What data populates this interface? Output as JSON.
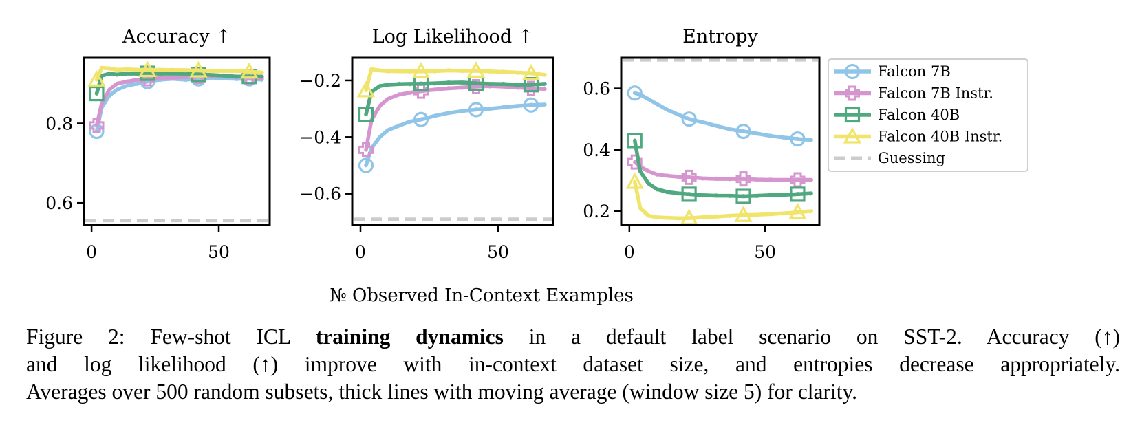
{
  "chart_data": [
    {
      "type": "line",
      "title": "Accuracy ↑",
      "xlim": [
        -3,
        70
      ],
      "ylim": [
        0.545,
        0.965
      ],
      "xticks": [
        0,
        50
      ],
      "xtick_labels": [
        "0",
        "50"
      ],
      "yticks": [
        0.6,
        0.8
      ],
      "ytick_labels": [
        "0.6",
        "0.8"
      ],
      "guessing": 0.556,
      "series": [
        {
          "name": "Falcon 7B",
          "x": [
            2,
            4,
            7,
            10,
            14,
            18,
            22,
            27,
            32,
            37,
            42,
            47,
            52,
            57,
            62,
            67
          ],
          "values": [
            0.78,
            0.84,
            0.87,
            0.885,
            0.895,
            0.9,
            0.905,
            0.91,
            0.912,
            0.91,
            0.912,
            0.915,
            0.913,
            0.912,
            0.912,
            0.91
          ]
        },
        {
          "name": "Falcon 7B Instr.",
          "x": [
            2,
            4,
            7,
            10,
            14,
            18,
            22,
            27,
            32,
            37,
            42,
            47,
            52,
            57,
            62,
            67
          ],
          "values": [
            0.795,
            0.85,
            0.885,
            0.9,
            0.905,
            0.91,
            0.912,
            0.915,
            0.915,
            0.917,
            0.918,
            0.918,
            0.918,
            0.917,
            0.915,
            0.913
          ]
        },
        {
          "name": "Falcon 40B",
          "x": [
            2,
            4,
            7,
            10,
            14,
            18,
            22,
            27,
            32,
            37,
            42,
            47,
            52,
            57,
            62,
            67
          ],
          "values": [
            0.875,
            0.92,
            0.925,
            0.923,
            0.925,
            0.925,
            0.926,
            0.925,
            0.925,
            0.925,
            0.923,
            0.922,
            0.92,
            0.918,
            0.918,
            0.918
          ]
        },
        {
          "name": "Falcon 40B Instr.",
          "x": [
            2,
            4,
            7,
            10,
            14,
            18,
            22,
            27,
            32,
            37,
            42,
            47,
            52,
            57,
            62,
            67
          ],
          "values": [
            0.91,
            0.94,
            0.938,
            0.935,
            0.936,
            0.935,
            0.934,
            0.935,
            0.934,
            0.934,
            0.933,
            0.932,
            0.932,
            0.932,
            0.93,
            0.928
          ]
        }
      ]
    },
    {
      "type": "line",
      "title": "Log Likelihood ↑",
      "xlim": [
        -3,
        70
      ],
      "ylim": [
        -0.71,
        -0.12
      ],
      "xticks": [
        0,
        50
      ],
      "xtick_labels": [
        "0",
        "50"
      ],
      "yticks": [
        -0.2,
        -0.4,
        -0.6
      ],
      "ytick_labels": [
        "−0.2",
        "−0.4",
        "−0.6"
      ],
      "guessing": -0.69,
      "series": [
        {
          "name": "Falcon 7B",
          "x": [
            2,
            4,
            7,
            10,
            14,
            18,
            22,
            27,
            32,
            37,
            42,
            47,
            52,
            57,
            62,
            67
          ],
          "values": [
            -0.5,
            -0.44,
            -0.4,
            -0.375,
            -0.36,
            -0.345,
            -0.338,
            -0.325,
            -0.315,
            -0.308,
            -0.303,
            -0.3,
            -0.295,
            -0.29,
            -0.287,
            -0.285
          ]
        },
        {
          "name": "Falcon 7B Instr.",
          "x": [
            2,
            4,
            7,
            10,
            14,
            18,
            22,
            27,
            32,
            37,
            42,
            47,
            52,
            57,
            62,
            67
          ],
          "values": [
            -0.445,
            -0.34,
            -0.29,
            -0.265,
            -0.25,
            -0.243,
            -0.238,
            -0.232,
            -0.228,
            -0.225,
            -0.222,
            -0.22,
            -0.222,
            -0.225,
            -0.228,
            -0.23
          ]
        },
        {
          "name": "Falcon 40B",
          "x": [
            2,
            4,
            7,
            10,
            14,
            18,
            22,
            27,
            32,
            37,
            42,
            47,
            52,
            57,
            62,
            67
          ],
          "values": [
            -0.32,
            -0.24,
            -0.22,
            -0.215,
            -0.213,
            -0.212,
            -0.212,
            -0.21,
            -0.208,
            -0.207,
            -0.21,
            -0.212,
            -0.213,
            -0.215,
            -0.215,
            -0.212
          ]
        },
        {
          "name": "Falcon 40B Instr.",
          "x": [
            2,
            4,
            7,
            10,
            14,
            18,
            22,
            27,
            32,
            37,
            42,
            47,
            52,
            57,
            62,
            67
          ],
          "values": [
            -0.235,
            -0.16,
            -0.165,
            -0.167,
            -0.168,
            -0.168,
            -0.168,
            -0.167,
            -0.165,
            -0.166,
            -0.166,
            -0.168,
            -0.17,
            -0.172,
            -0.175,
            -0.18
          ]
        }
      ]
    },
    {
      "type": "line",
      "title": "Entropy",
      "xlim": [
        -3,
        70
      ],
      "ylim": [
        0.155,
        0.7
      ],
      "xticks": [
        0,
        50
      ],
      "xtick_labels": [
        "0",
        "50"
      ],
      "yticks": [
        0.2,
        0.4,
        0.6
      ],
      "ytick_labels": [
        "0.2",
        "0.4",
        "0.6"
      ],
      "guessing": 0.693,
      "series": [
        {
          "name": "Falcon 7B",
          "x": [
            2,
            4,
            7,
            10,
            14,
            18,
            22,
            27,
            32,
            37,
            42,
            47,
            52,
            57,
            62,
            67
          ],
          "values": [
            0.585,
            0.58,
            0.565,
            0.55,
            0.53,
            0.515,
            0.5,
            0.49,
            0.478,
            0.467,
            0.46,
            0.453,
            0.445,
            0.44,
            0.435,
            0.432
          ]
        },
        {
          "name": "Falcon 7B Instr.",
          "x": [
            2,
            4,
            7,
            10,
            14,
            18,
            22,
            27,
            32,
            37,
            42,
            47,
            52,
            57,
            62,
            67
          ],
          "values": [
            0.36,
            0.345,
            0.33,
            0.32,
            0.315,
            0.312,
            0.31,
            0.307,
            0.305,
            0.305,
            0.305,
            0.303,
            0.302,
            0.302,
            0.302,
            0.302
          ]
        },
        {
          "name": "Falcon 40B",
          "x": [
            2,
            4,
            7,
            10,
            14,
            18,
            22,
            27,
            32,
            37,
            42,
            47,
            52,
            57,
            62,
            67
          ],
          "values": [
            0.43,
            0.33,
            0.29,
            0.272,
            0.262,
            0.258,
            0.255,
            0.252,
            0.25,
            0.25,
            0.248,
            0.25,
            0.252,
            0.253,
            0.255,
            0.258
          ]
        },
        {
          "name": "Falcon 40B Instr.",
          "x": [
            2,
            4,
            7,
            10,
            14,
            18,
            22,
            27,
            32,
            37,
            42,
            47,
            52,
            57,
            62,
            67
          ],
          "values": [
            0.295,
            0.21,
            0.185,
            0.18,
            0.178,
            0.177,
            0.177,
            0.18,
            0.182,
            0.185,
            0.187,
            0.188,
            0.19,
            0.193,
            0.196,
            0.2
          ]
        }
      ]
    }
  ],
  "xlabel": "№ Observed In-Context Examples",
  "legend": {
    "position": "right",
    "entries": [
      {
        "label": "Falcon 7B",
        "marker": "circle",
        "color": "#91c5e8"
      },
      {
        "label": "Falcon 7B Instr.",
        "marker": "plus",
        "color": "#d596cf"
      },
      {
        "label": "Falcon 40B",
        "marker": "square",
        "color": "#4fa87f"
      },
      {
        "label": "Falcon 40B Instr.",
        "marker": "triangle",
        "color": "#f0e46a"
      },
      {
        "label": "Guessing",
        "marker": "dashed",
        "color": "#cccccc"
      }
    ]
  },
  "caption": {
    "line1_a": "Figure 2:  Few-shot ICL ",
    "line1_bold": "training dynamics",
    "line1_b": " in a default label scenario on SST-2.  Accuracy (↑)",
    "line2": "and log likelihood (↑) improve with in-context dataset size, and entropies decrease appropriately.",
    "line3": "Averages over 500 random subsets, thick lines with moving average (window size 5) for clarity."
  }
}
